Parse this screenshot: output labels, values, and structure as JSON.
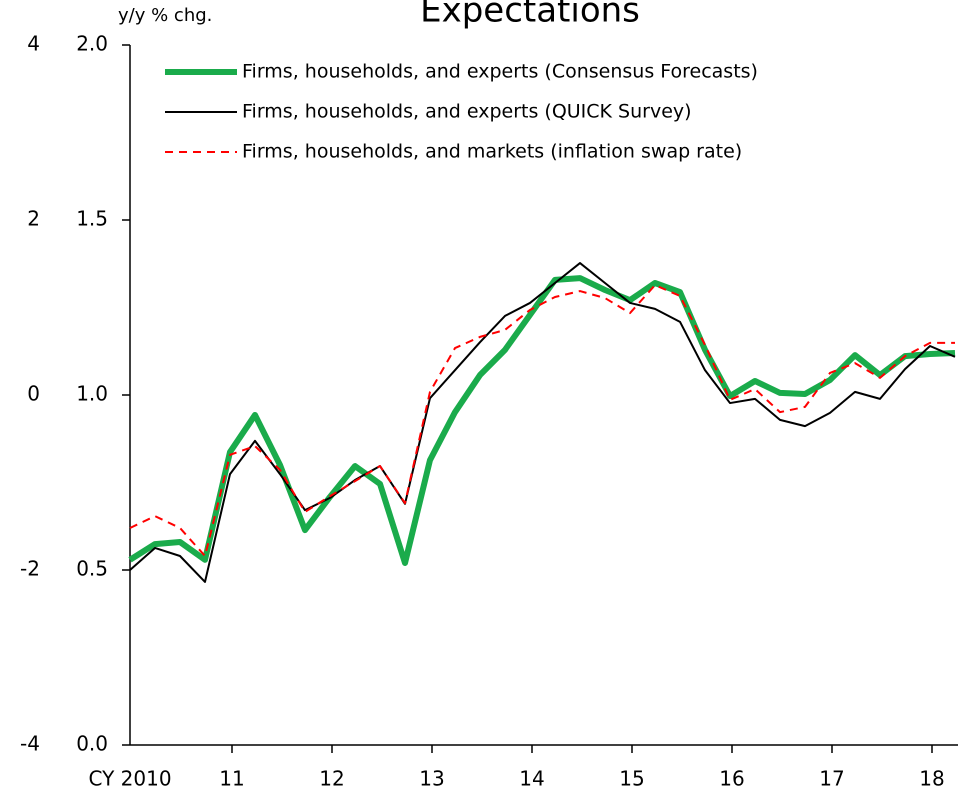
{
  "chart_data": {
    "type": "line",
    "title": "Expectations",
    "y_axis_label": "y/y % chg.",
    "categories": [
      "CY 2010",
      null,
      null,
      null,
      "11",
      null,
      null,
      null,
      "12",
      null,
      null,
      null,
      "13",
      null,
      null,
      null,
      "14",
      null,
      null,
      null,
      "15",
      null,
      null,
      null,
      "16",
      null,
      null,
      null,
      "17",
      null,
      null,
      null,
      "18",
      null
    ],
    "series": [
      {
        "name": "Firms, households, and experts (Consensus Forecasts)",
        "color": "#1aab4b",
        "width": 6,
        "dash": "solid",
        "values": [
          0.529,
          0.574,
          0.58,
          0.529,
          0.837,
          0.943,
          0.8,
          0.614,
          0.709,
          0.797,
          0.746,
          0.52,
          0.814,
          0.951,
          1.057,
          1.129,
          1.229,
          1.329,
          1.334,
          1.3,
          1.271,
          1.32,
          1.294,
          1.129,
          0.997,
          1.04,
          1.006,
          1.003,
          1.043,
          1.114,
          1.057,
          1.111,
          1.117,
          1.12
        ]
      },
      {
        "name": "Firms, households, and experts (QUICK Survey)",
        "color": "#000000",
        "width": 2,
        "dash": "solid",
        "values": [
          0.5,
          0.563,
          0.54,
          0.466,
          0.774,
          0.869,
          0.774,
          0.671,
          0.706,
          0.757,
          0.797,
          0.689,
          0.991,
          1.071,
          1.151,
          1.226,
          1.263,
          1.32,
          1.377,
          1.32,
          1.263,
          1.246,
          1.209,
          1.071,
          0.977,
          0.989,
          0.929,
          0.911,
          0.949,
          1.009,
          0.989,
          1.074,
          1.14,
          1.109
        ]
      },
      {
        "name": "Firms, households, and markets (inflation swap rate)",
        "color": "#ff0000",
        "width": 2,
        "dash": "dashed",
        "values": [
          0.62,
          0.654,
          0.62,
          0.54,
          0.829,
          0.854,
          0.786,
          0.666,
          0.711,
          0.754,
          0.797,
          0.691,
          1.009,
          1.134,
          1.166,
          1.186,
          1.243,
          1.28,
          1.297,
          1.277,
          1.234,
          1.314,
          1.283,
          1.143,
          0.986,
          1.017,
          0.951,
          0.966,
          1.063,
          1.091,
          1.049,
          1.111,
          1.149,
          1.149
        ]
      }
    ],
    "ylim": [
      0,
      2
    ],
    "yticks": [
      {
        "value": 0,
        "label": "0.0"
      },
      0.5,
      {
        "value": 1,
        "label": "1.0"
      },
      1.5,
      {
        "value": 2,
        "label": "2.0"
      }
    ],
    "y2lim": [
      -4,
      4
    ],
    "y2ticks": [
      -4,
      -2,
      0,
      2,
      4
    ],
    "legend": "top-left",
    "grid": false
  }
}
